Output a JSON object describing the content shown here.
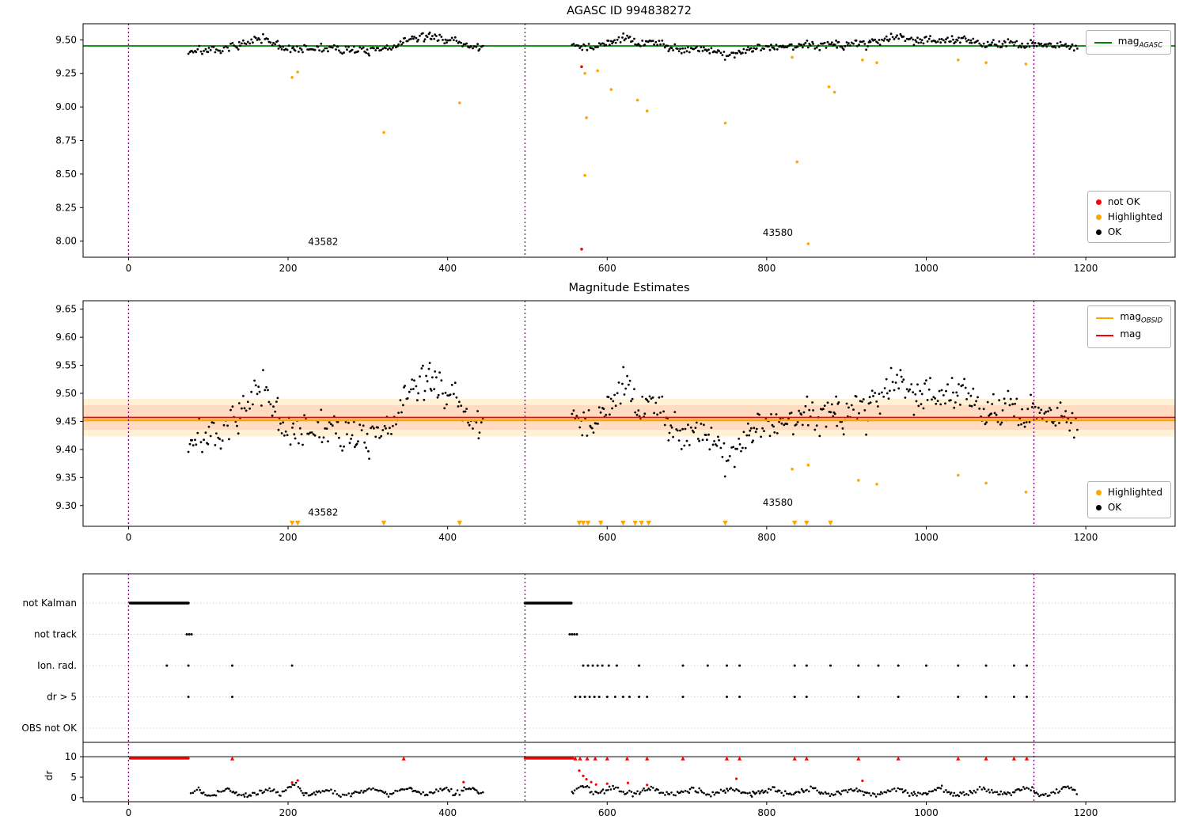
{
  "figure": {
    "bg": "#ffffff"
  },
  "colors": {
    "ok": "#000000",
    "highlighted": "#ffa500",
    "not_ok": "#ff0000",
    "mag_agasc_line": "#008000",
    "mag_obsid_line": "#ffa500",
    "mag_line": "#ff0000",
    "vline": "#800080",
    "band_orange": "rgba(255,165,0,0.16)",
    "band_red": "rgba(255,0,0,0.09)",
    "grid": "#b0b0b0",
    "axis": "#000000"
  },
  "chart_data": [
    {
      "type": "scatter",
      "title": "AGASC ID 994838272",
      "xlim": [
        -57,
        1312
      ],
      "ylim": [
        7.88,
        9.62
      ],
      "xticks": [
        0,
        200,
        400,
        600,
        800,
        1000,
        1200
      ],
      "xtick_labels": [
        "0",
        "200",
        "400",
        "600",
        "800",
        "1000",
        "1200"
      ],
      "yticks": [
        9.5,
        9.25,
        9.0,
        8.75,
        8.5,
        8.25,
        8.0
      ],
      "ytick_labels": [
        "9.50",
        "9.25",
        "9.00",
        "8.75",
        "8.50",
        "8.25",
        "8.00"
      ],
      "hline": {
        "y": 9.455,
        "label_base": "mag",
        "label_sub": "AGASC"
      },
      "vlines": [
        0,
        497,
        1135
      ],
      "annotations": [
        {
          "x": 225,
          "y": 7.97,
          "text": "43582"
        },
        {
          "x": 795,
          "y": 8.04,
          "text": "43580"
        }
      ],
      "legend_marks": [
        {
          "label": "not OK",
          "color_key": "not_ok"
        },
        {
          "label": "Highlighted",
          "color_key": "highlighted"
        },
        {
          "label": "OK",
          "color_key": "ok"
        }
      ],
      "highlighted": [
        [
          205,
          9.22
        ],
        [
          212,
          9.26
        ],
        [
          320,
          8.81
        ],
        [
          415,
          9.03
        ],
        [
          572,
          9.25
        ],
        [
          574,
          8.92
        ],
        [
          572,
          8.49
        ],
        [
          588,
          9.27
        ],
        [
          605,
          9.13
        ],
        [
          638,
          9.05
        ],
        [
          650,
          8.97
        ],
        [
          748,
          8.88
        ],
        [
          832,
          9.37
        ],
        [
          838,
          8.59
        ],
        [
          852,
          7.98
        ],
        [
          878,
          9.15
        ],
        [
          885,
          9.11
        ],
        [
          920,
          9.35
        ],
        [
          938,
          9.33
        ],
        [
          1040,
          9.35
        ],
        [
          1075,
          9.33
        ],
        [
          1125,
          9.32
        ]
      ],
      "not_ok": [
        [
          568,
          9.3
        ],
        [
          568,
          7.94
        ]
      ],
      "ok_points_spec": {
        "seed": 7,
        "jitter": 0.016,
        "segments": [
          {
            "x0": 75,
            "x1": 445,
            "step": 1.7
          },
          {
            "x0": 556,
            "x1": 1190,
            "step": 1.7
          }
        ],
        "mean_path": [
          [
            75,
            9.41
          ],
          [
            88,
            9.43
          ],
          [
            100,
            9.42
          ],
          [
            112,
            9.41
          ],
          [
            125,
            9.44
          ],
          [
            140,
            9.47
          ],
          [
            155,
            9.49
          ],
          [
            170,
            9.51
          ],
          [
            180,
            9.47
          ],
          [
            192,
            9.44
          ],
          [
            205,
            9.44
          ],
          [
            220,
            9.43
          ],
          [
            240,
            9.44
          ],
          [
            260,
            9.43
          ],
          [
            280,
            9.43
          ],
          [
            300,
            9.41
          ],
          [
            315,
            9.42
          ],
          [
            330,
            9.45
          ],
          [
            345,
            9.49
          ],
          [
            360,
            9.51
          ],
          [
            375,
            9.52
          ],
          [
            390,
            9.51
          ],
          [
            405,
            9.5
          ],
          [
            418,
            9.47
          ],
          [
            430,
            9.46
          ],
          [
            445,
            9.44
          ],
          [
            556,
            9.45
          ],
          [
            570,
            9.44
          ],
          [
            585,
            9.45
          ],
          [
            600,
            9.47
          ],
          [
            615,
            9.5
          ],
          [
            628,
            9.51
          ],
          [
            640,
            9.47
          ],
          [
            655,
            9.49
          ],
          [
            670,
            9.46
          ],
          [
            685,
            9.44
          ],
          [
            700,
            9.43
          ],
          [
            715,
            9.44
          ],
          [
            730,
            9.42
          ],
          [
            745,
            9.39
          ],
          [
            760,
            9.4
          ],
          [
            775,
            9.42
          ],
          [
            790,
            9.45
          ],
          [
            805,
            9.45
          ],
          [
            820,
            9.44
          ],
          [
            835,
            9.46
          ],
          [
            850,
            9.46
          ],
          [
            865,
            9.46
          ],
          [
            880,
            9.48
          ],
          [
            895,
            9.46
          ],
          [
            910,
            9.47
          ],
          [
            925,
            9.47
          ],
          [
            940,
            9.5
          ],
          [
            955,
            9.52
          ],
          [
            970,
            9.53
          ],
          [
            985,
            9.5
          ],
          [
            1000,
            9.5
          ],
          [
            1015,
            9.5
          ],
          [
            1030,
            9.49
          ],
          [
            1045,
            9.5
          ],
          [
            1060,
            9.48
          ],
          [
            1075,
            9.47
          ],
          [
            1090,
            9.46
          ],
          [
            1105,
            9.47
          ],
          [
            1120,
            9.46
          ],
          [
            1135,
            9.47
          ],
          [
            1150,
            9.47
          ],
          [
            1165,
            9.46
          ],
          [
            1180,
            9.46
          ],
          [
            1190,
            9.46
          ]
        ]
      }
    },
    {
      "type": "scatter",
      "title": "Magnitude Estimates",
      "xlim": [
        -57,
        1312
      ],
      "ylim": [
        9.263,
        9.665
      ],
      "xticks": [
        0,
        200,
        400,
        600,
        800,
        1000,
        1200
      ],
      "xtick_labels": [
        "0",
        "200",
        "400",
        "600",
        "800",
        "1000",
        "1200"
      ],
      "yticks": [
        9.65,
        9.6,
        9.55,
        9.5,
        9.45,
        9.4,
        9.35,
        9.3
      ],
      "ytick_labels": [
        "9.65",
        "9.60",
        "9.55",
        "9.50",
        "9.45",
        "9.40",
        "9.35",
        "9.30"
      ],
      "hlines": [
        {
          "y": 9.452,
          "color_key": "mag_obsid_line",
          "lw": 2.6,
          "label_base": "mag",
          "label_sub": "OBSID"
        },
        {
          "y": 9.457,
          "color_key": "mag_line",
          "lw": 1.8,
          "label_base": "mag",
          "label_sub": ""
        }
      ],
      "bands": [
        {
          "y0": 9.423,
          "y1": 9.49,
          "color_key": "band_orange"
        },
        {
          "y0": 9.435,
          "y1": 9.479,
          "color_key": "band_red"
        }
      ],
      "vlines": [
        0,
        497,
        1135
      ],
      "annotations": [
        {
          "x": 225,
          "y": 9.282,
          "text": "43582"
        },
        {
          "x": 795,
          "y": 9.3,
          "text": "43580"
        }
      ],
      "legend_marks": [
        {
          "label": "Highlighted",
          "color_key": "highlighted"
        },
        {
          "label": "OK",
          "color_key": "ok"
        }
      ],
      "highlighted": [
        [
          832,
          9.365
        ],
        [
          852,
          9.372
        ],
        [
          915,
          9.345
        ],
        [
          938,
          9.338
        ],
        [
          1040,
          9.354
        ],
        [
          1075,
          9.34
        ],
        [
          1125,
          9.324
        ]
      ],
      "clip_markers_x": [
        205,
        212,
        320,
        415,
        565,
        570,
        576,
        592,
        620,
        635,
        643,
        652,
        748,
        835,
        850,
        880
      ],
      "clip_y": 9.2685,
      "ok_series_ref": 0
    },
    {
      "type": "event_rows",
      "categories": [
        "not Kalman",
        "not track",
        "Ion. rad.",
        "dr > 5",
        "OBS not OK"
      ],
      "runs": [
        [
          [
            2,
            75
          ],
          [
            497,
            555
          ]
        ],
        [],
        [],
        [],
        []
      ],
      "points": [
        [],
        [
          73,
          76,
          79,
          553,
          556,
          559,
          562
        ],
        [
          48,
          75,
          130,
          205,
          570,
          576,
          582,
          588,
          594,
          602,
          612,
          640,
          695,
          726,
          750,
          766,
          835,
          850,
          880,
          915,
          940,
          965,
          1000,
          1040,
          1075,
          1110,
          1126
        ],
        [
          75,
          130,
          560,
          566,
          572,
          578,
          584,
          590,
          600,
          610,
          620,
          628,
          640,
          650,
          695,
          750,
          766,
          835,
          850,
          915,
          965,
          1040,
          1075,
          1110,
          1126
        ],
        []
      ],
      "vlines": [
        0,
        497,
        1135
      ]
    },
    {
      "type": "scatter",
      "ylabel": "dr",
      "xlim": [
        -57,
        1312
      ],
      "ylim": [
        -1,
        13.5
      ],
      "xticks": [
        0,
        200,
        400,
        600,
        800,
        1000,
        1200
      ],
      "xtick_labels": [
        "0",
        "200",
        "400",
        "600",
        "800",
        "1000",
        "1200"
      ],
      "yticks": [
        10,
        5,
        0
      ],
      "ytick_labels": [
        "10",
        "5",
        "0"
      ],
      "hline_y": 10,
      "clip_value": 9.6,
      "clip_runs": [
        [
          2,
          75
        ],
        [
          497,
          557
        ]
      ],
      "clip_points_x": [
        130,
        345,
        560,
        566,
        575,
        585,
        600,
        625,
        650,
        695,
        750,
        766,
        835,
        850,
        915,
        965,
        1040,
        1075,
        1110,
        1126
      ],
      "red_points": [
        [
          205,
          3.7
        ],
        [
          212,
          4.2
        ],
        [
          420,
          3.8
        ],
        [
          565,
          6.6
        ],
        [
          570,
          5.3
        ],
        [
          574,
          4.5
        ],
        [
          580,
          3.8
        ],
        [
          586,
          3.2
        ],
        [
          600,
          3.4
        ],
        [
          626,
          3.6
        ],
        [
          650,
          3.1
        ],
        [
          762,
          4.6
        ],
        [
          920,
          4.1
        ]
      ],
      "vlines": [
        0,
        497,
        1135
      ],
      "ok_points_spec": {
        "seed": 12,
        "jitter": 0.3,
        "segments": [
          {
            "x0": 78,
            "x1": 445,
            "step": 2
          },
          {
            "x0": 556,
            "x1": 1190,
            "step": 2
          }
        ],
        "mean_path": [
          [
            78,
            1.4
          ],
          [
            88,
            2.0
          ],
          [
            96,
            1.0
          ],
          [
            106,
            0.7
          ],
          [
            116,
            1.6
          ],
          [
            126,
            2.1
          ],
          [
            136,
            1.0
          ],
          [
            150,
            0.6
          ],
          [
            164,
            1.3
          ],
          [
            178,
            2.0
          ],
          [
            190,
            1.0
          ],
          [
            202,
            2.6
          ],
          [
            210,
            3.2
          ],
          [
            218,
            1.2
          ],
          [
            228,
            0.7
          ],
          [
            240,
            1.4
          ],
          [
            252,
            2.0
          ],
          [
            262,
            1.0
          ],
          [
            272,
            0.5
          ],
          [
            284,
            1.1
          ],
          [
            296,
            1.7
          ],
          [
            308,
            2.3
          ],
          [
            318,
            1.2
          ],
          [
            330,
            0.8
          ],
          [
            342,
            1.9
          ],
          [
            352,
            2.6
          ],
          [
            362,
            1.4
          ],
          [
            374,
            0.9
          ],
          [
            386,
            1.6
          ],
          [
            398,
            2.2
          ],
          [
            408,
            1.0
          ],
          [
            418,
            1.7
          ],
          [
            428,
            2.6
          ],
          [
            438,
            1.4
          ],
          [
            445,
            1.0
          ],
          [
            556,
            1.2
          ],
          [
            564,
            2.2
          ],
          [
            572,
            3.0
          ],
          [
            580,
            1.6
          ],
          [
            590,
            1.0
          ],
          [
            600,
            2.0
          ],
          [
            610,
            2.6
          ],
          [
            620,
            1.4
          ],
          [
            632,
            0.9
          ],
          [
            644,
            1.8
          ],
          [
            656,
            2.4
          ],
          [
            668,
            1.2
          ],
          [
            680,
            0.8
          ],
          [
            694,
            1.5
          ],
          [
            708,
            2.1
          ],
          [
            720,
            1.2
          ],
          [
            732,
            0.7
          ],
          [
            744,
            1.6
          ],
          [
            756,
            2.4
          ],
          [
            768,
            1.3
          ],
          [
            780,
            0.8
          ],
          [
            794,
            1.5
          ],
          [
            808,
            2.2
          ],
          [
            820,
            1.1
          ],
          [
            832,
            0.7
          ],
          [
            846,
            1.6
          ],
          [
            858,
            2.2
          ],
          [
            870,
            1.1
          ],
          [
            884,
            0.8
          ],
          [
            898,
            1.6
          ],
          [
            912,
            2.3
          ],
          [
            924,
            1.2
          ],
          [
            938,
            0.8
          ],
          [
            952,
            1.6
          ],
          [
            966,
            2.2
          ],
          [
            978,
            1.1
          ],
          [
            992,
            0.8
          ],
          [
            1006,
            1.6
          ],
          [
            1020,
            2.2
          ],
          [
            1032,
            1.1
          ],
          [
            1046,
            0.8
          ],
          [
            1060,
            1.6
          ],
          [
            1074,
            2.3
          ],
          [
            1086,
            1.2
          ],
          [
            1100,
            0.8
          ],
          [
            1114,
            1.7
          ],
          [
            1128,
            2.4
          ],
          [
            1140,
            1.2
          ],
          [
            1154,
            0.9
          ],
          [
            1166,
            1.8
          ],
          [
            1178,
            2.5
          ],
          [
            1190,
            1.3
          ]
        ]
      }
    }
  ]
}
